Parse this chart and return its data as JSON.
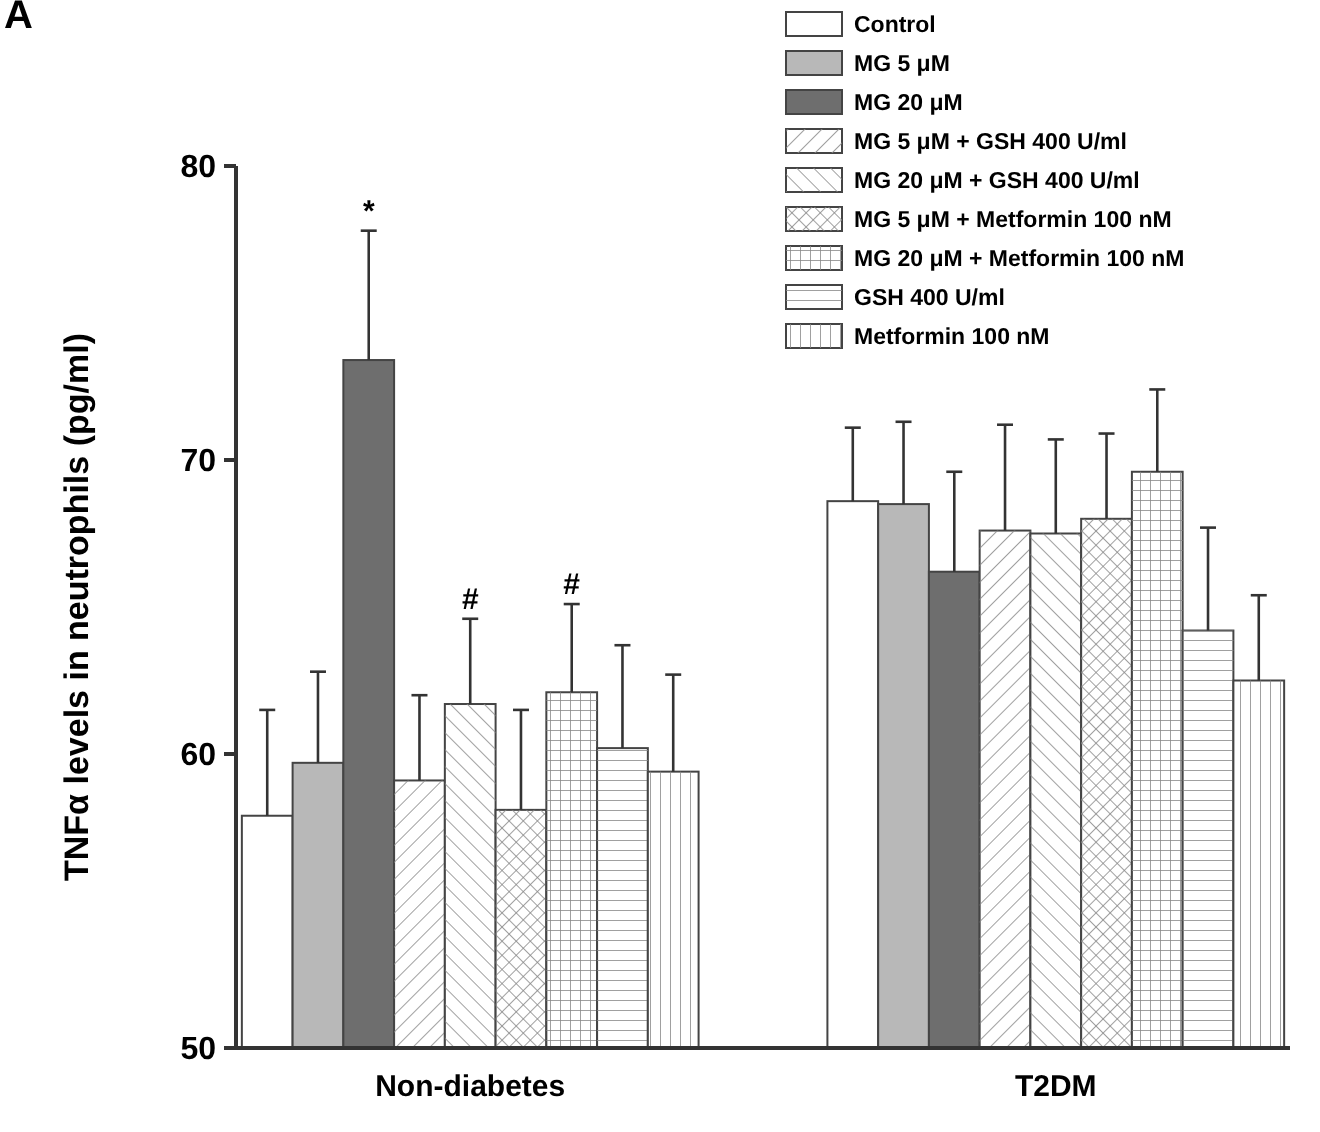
{
  "chart_data": {
    "type": "bar",
    "title": "A",
    "ylabel": "TNFα levels in neutrophils (pg/ml)",
    "categories": [
      "Non-diabetes",
      "T2DM"
    ],
    "series": [
      {
        "name": "Control",
        "color": "#ffffff",
        "values": [
          57.9,
          68.6
        ],
        "errors": [
          3.6,
          2.5
        ]
      },
      {
        "name": "MG 5 μM",
        "color": "#b8b8b8",
        "values": [
          59.7,
          68.5
        ],
        "errors": [
          3.1,
          2.8
        ]
      },
      {
        "name": "MG 20 μM",
        "color": "#6e6e6e",
        "values": [
          73.4,
          66.2
        ],
        "errors": [
          4.4,
          3.4
        ]
      },
      {
        "name": "MG 5 μM + GSH 400 U/ml",
        "color": "#ffffff",
        "values": [
          59.1,
          67.6
        ],
        "errors": [
          2.9,
          3.6
        ]
      },
      {
        "name": "MG 20 μM + GSH 400 U/ml",
        "color": "#ffffff",
        "values": [
          61.7,
          67.5
        ],
        "errors": [
          2.9,
          3.2
        ]
      },
      {
        "name": "MG 5 μM + Metformin 100 nM",
        "color": "#ffffff",
        "values": [
          58.1,
          68.0
        ],
        "errors": [
          3.4,
          2.9
        ]
      },
      {
        "name": "MG 20 μM + Metformin 100 nM",
        "color": "#ffffff",
        "values": [
          62.1,
          69.6
        ],
        "errors": [
          3.0,
          2.8
        ]
      },
      {
        "name": "GSH 400 U/ml",
        "color": "#ffffff",
        "values": [
          60.2,
          64.2
        ],
        "errors": [
          3.5,
          3.5
        ]
      },
      {
        "name": "Metformin 100 nM",
        "color": "#ffffff",
        "values": [
          59.4,
          62.5
        ],
        "errors": [
          3.3,
          2.9
        ]
      }
    ],
    "ylim": [
      50,
      80
    ],
    "yticks": [
      50,
      60,
      70,
      80
    ],
    "grid": false,
    "legend": "top right",
    "annotations": [
      "*",
      "#",
      "#"
    ]
  }
}
